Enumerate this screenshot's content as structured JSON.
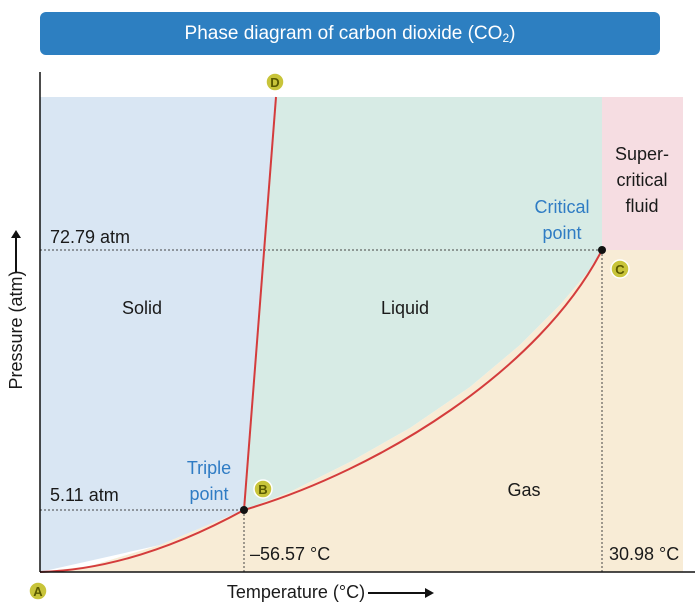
{
  "title": {
    "main": "Phase diagram of carbon dioxide (CO",
    "sub": "2",
    "end": ")"
  },
  "axes": {
    "xlabel": "Temperature (°C)",
    "ylabel": "Pressure (atm)"
  },
  "regions": {
    "solid": "Solid",
    "liquid": "Liquid",
    "gas": "Gas",
    "supercritical_line1": "Super-",
    "supercritical_line2": "critical",
    "supercritical_line3": "fluid"
  },
  "points": {
    "triple_line1": "Triple",
    "triple_line2": "point",
    "critical_line1": "Critical",
    "critical_line2": "point",
    "A": "A",
    "B": "B",
    "C": "C",
    "D": "D"
  },
  "values": {
    "critical_pressure": "72.79 atm",
    "triple_pressure": "5.11 atm",
    "triple_temp": "–56.57 °C",
    "critical_temp": "30.98 °C"
  },
  "colors": {
    "title_bg": "#2d7fc1",
    "solid_region": "#d9e6f3",
    "liquid_region": "#d7ebe5",
    "gas_region": "#f8ecd6",
    "supercritical_region": "#f6dde2",
    "curve": "#d43c3c",
    "marker": "#c8c43a"
  }
}
